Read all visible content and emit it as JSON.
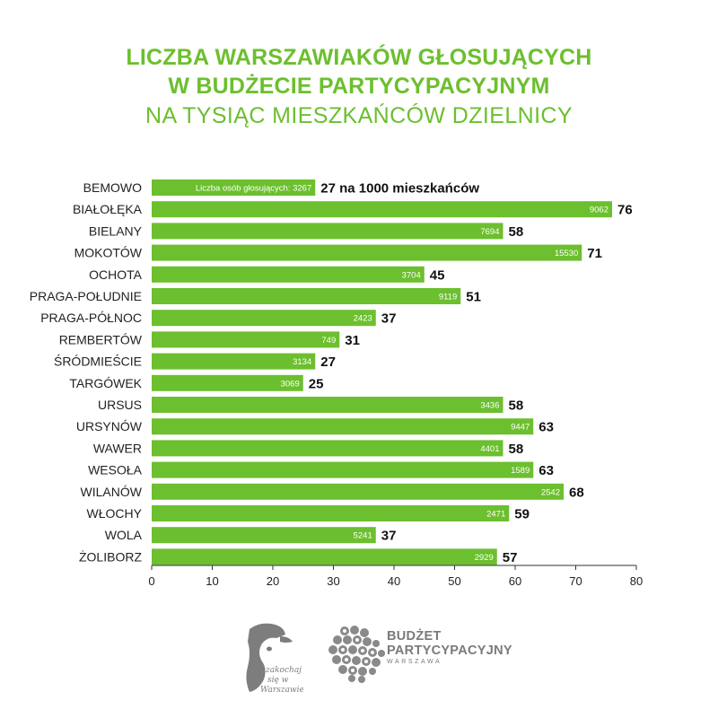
{
  "title": {
    "line1": "LICZBA WARSZAWIAKÓW GŁOSUJĄCYCH",
    "line2": "W BUDŻECIE PARTYCYPACYJNYM",
    "line3": "NA TYSIĄC MIESZKAŃCÓW DZIELNICY"
  },
  "chart_data": {
    "type": "bar",
    "orientation": "horizontal",
    "categories": [
      "BEMOWO",
      "BIAŁOŁĘKA",
      "BIELANY",
      "MOKOTÓW",
      "OCHOTA",
      "PRAGA-POŁUDNIE",
      "PRAGA-PÓŁNOC",
      "REMBERTÓW",
      "ŚRÓDMIEŚCIE",
      "TARGÓWEK",
      "URSUS",
      "URSYNÓW",
      "WAWER",
      "WESOŁA",
      "WILANÓW",
      "WŁOCHY",
      "WOLA",
      "ŻOLIBORZ"
    ],
    "values": [
      27,
      76,
      58,
      71,
      45,
      51,
      37,
      31,
      27,
      25,
      58,
      63,
      58,
      63,
      68,
      59,
      37,
      57
    ],
    "inner_labels": [
      "Liczba osób głosujących: 3267",
      "9062",
      "7694",
      "15530",
      "3704",
      "9119",
      "2423",
      "749",
      "3134",
      "3069",
      "3436",
      "9447",
      "4401",
      "1589",
      "2542",
      "2471",
      "5241",
      "2929"
    ],
    "value_labels": [
      "27 na 1000 mieszkańców",
      "76",
      "58",
      "71",
      "45",
      "51",
      "37",
      "31",
      "27",
      "25",
      "58",
      "63",
      "58",
      "63",
      "68",
      "59",
      "37",
      "57"
    ],
    "xlim": [
      0,
      80
    ],
    "xticks": [
      0,
      10,
      20,
      30,
      40,
      50,
      60,
      70,
      80
    ],
    "grid": false,
    "bar_color": "#6cbf2e"
  },
  "footer": {
    "logo1_text": "zakochaj się w Warszawie",
    "logo2_line1": "BUDŻET",
    "logo2_line2": "PARTYCYPACYJNY",
    "logo2_line3": "WARSZAWA"
  }
}
